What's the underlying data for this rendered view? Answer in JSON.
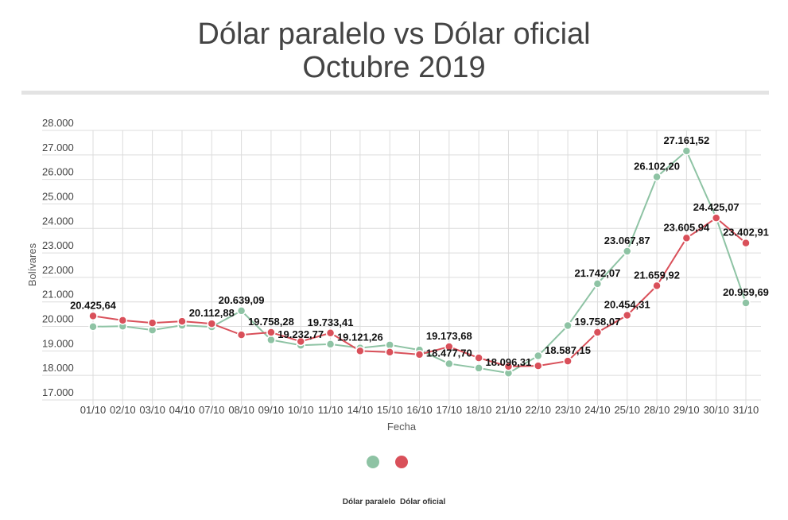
{
  "title_line1": "Dólar paralelo vs Dólar oficial",
  "title_line2": "Octubre 2019",
  "chart_data": {
    "type": "line",
    "title": "Dólar paralelo vs Dólar oficial Octubre 2019",
    "xlabel": "Fecha",
    "ylabel": "Bolívares",
    "ylim": [
      17000,
      28000
    ],
    "yticks": [
      17000,
      18000,
      19000,
      20000,
      21000,
      22000,
      23000,
      24000,
      25000,
      26000,
      27000,
      28000
    ],
    "ytick_labels": [
      "17.000",
      "18.000",
      "19.000",
      "20.000",
      "21.000",
      "22.000",
      "23.000",
      "24.000",
      "25.000",
      "26.000",
      "27.000",
      "28.000"
    ],
    "grid": true,
    "legend_position": "bottom",
    "categories": [
      "01/10",
      "02/10",
      "03/10",
      "04/10",
      "07/10",
      "08/10",
      "09/10",
      "10/10",
      "11/10",
      "14/10",
      "15/10",
      "16/10",
      "17/10",
      "18/10",
      "21/10",
      "22/10",
      "23/10",
      "24/10",
      "25/10",
      "28/10",
      "29/10",
      "30/10",
      "31/10"
    ],
    "series": [
      {
        "name": "Dólar paralelo",
        "color": "#8ec3a4",
        "values": [
          19990,
          20010,
          19850,
          20045,
          19980,
          20639.09,
          19450,
          19232.77,
          19275,
          19121.26,
          19245,
          19040,
          18477.7,
          18300,
          18096.31,
          18800,
          20035,
          21742.07,
          23067.87,
          26102.2,
          27161.52,
          24430,
          20959.69
        ],
        "labels": [
          null,
          null,
          null,
          null,
          null,
          "20.639,09",
          null,
          "19.232,77",
          null,
          "19.121,26",
          null,
          null,
          "18.477,70",
          null,
          "18.096,31",
          null,
          null,
          "21.742,07",
          "23.067,87",
          "26.102,20",
          "27.161,52",
          null,
          "20.959,69"
        ]
      },
      {
        "name": "Dólar oficial",
        "color": "#d9505a",
        "values": [
          20425.64,
          20250,
          20143,
          20208,
          20112.88,
          19656,
          19758.28,
          19385,
          19733.41,
          19000,
          18950,
          18855,
          19173.68,
          18715,
          18367,
          18390,
          18587.15,
          19758.07,
          20454.31,
          21659.92,
          23605.94,
          24425.07,
          23402.91
        ],
        "labels": [
          "20.425,64",
          null,
          null,
          null,
          "20.112,88",
          null,
          "19.758,28",
          null,
          "19.733,41",
          null,
          null,
          null,
          "19.173,68",
          null,
          null,
          null,
          "18.587,15",
          "19.758,07",
          "20.454,31",
          "21.659,92",
          "23.605,94",
          "24.425,07",
          "23.402,91"
        ]
      }
    ]
  }
}
